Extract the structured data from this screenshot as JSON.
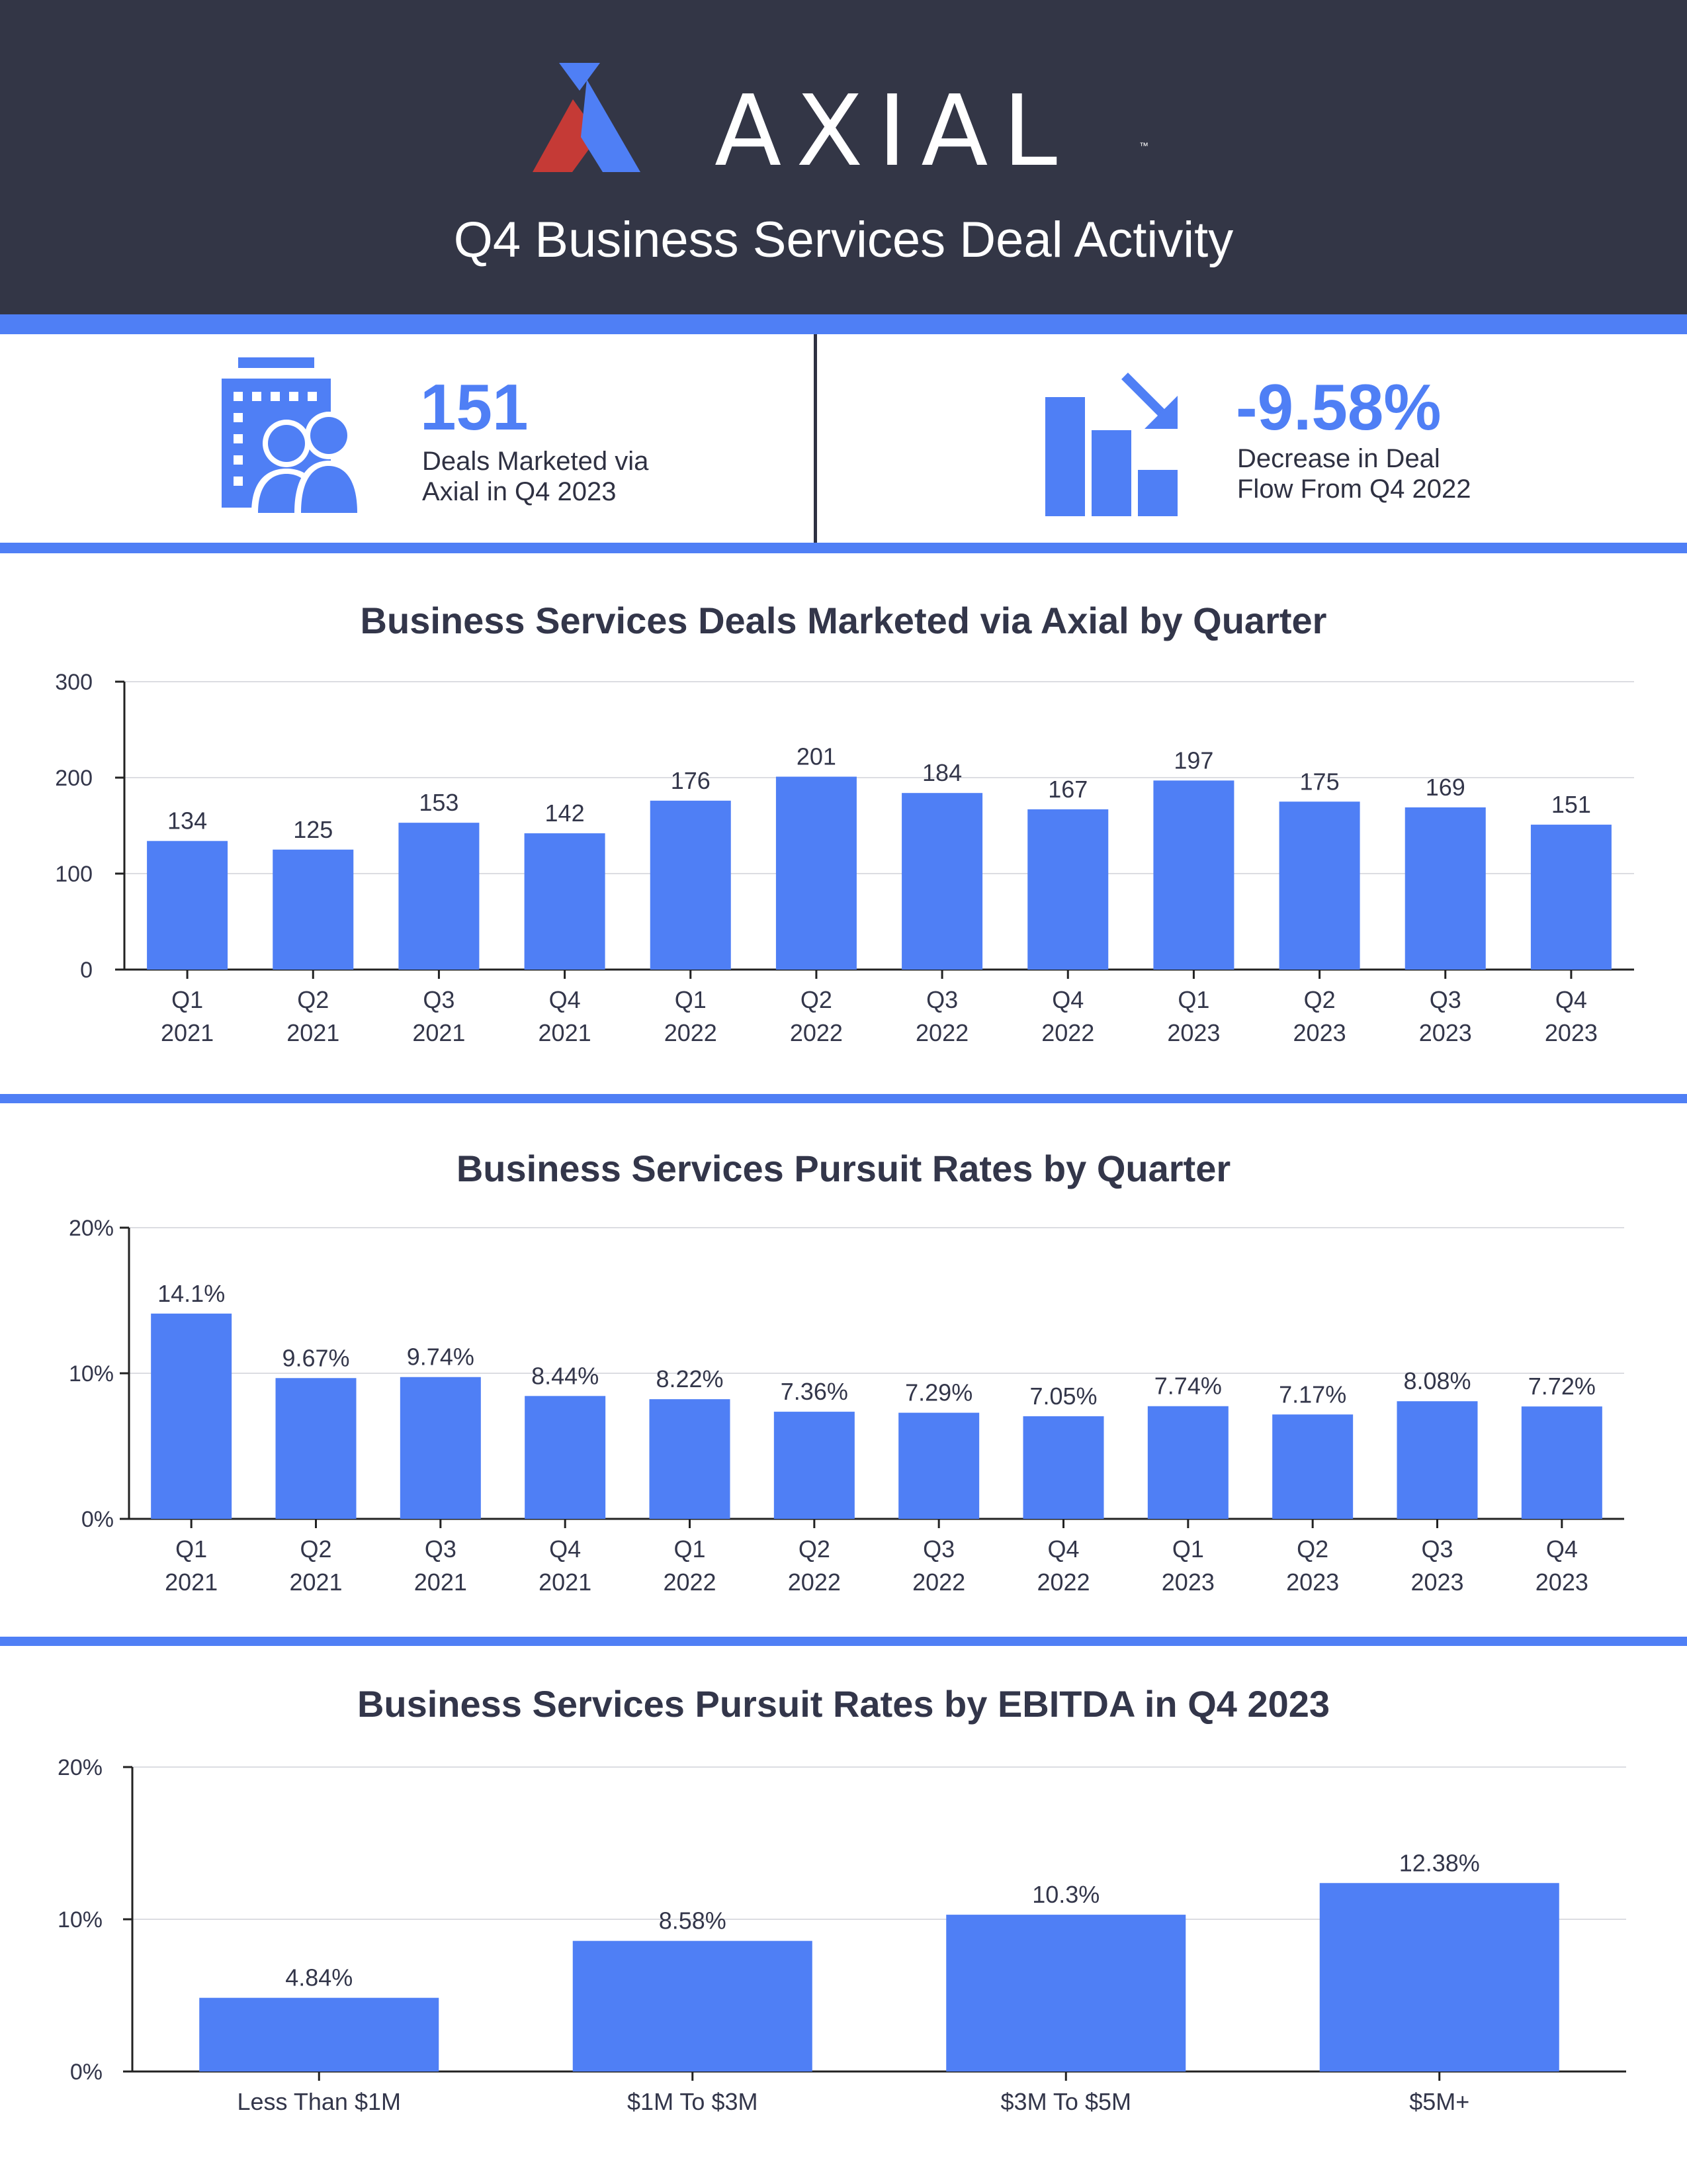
{
  "header": {
    "brand": "AXIAL",
    "trademark": "™",
    "title": "Q4 Business Services Deal Activity",
    "colors": {
      "background": "#333646",
      "logo_red": "#c53a36",
      "logo_blue": "#4f7ff5",
      "text": "#ffffff"
    }
  },
  "stats": [
    {
      "icon": "building-people-icon",
      "value": "151",
      "caption_line1": "Deals Marketed via",
      "caption_line2": "Axial in Q4 2023"
    },
    {
      "icon": "declining-bars-arrow-icon",
      "value": "-9.58%",
      "caption_line1": "Decrease in Deal",
      "caption_line2": "Flow From Q4 2022"
    }
  ],
  "accent_color": "#4f7ff5",
  "chart_data": [
    {
      "type": "bar",
      "title": "Business Services Deals Marketed via Axial by Quarter",
      "categories": [
        [
          "Q1",
          "2021"
        ],
        [
          "Q2",
          "2021"
        ],
        [
          "Q3",
          "2021"
        ],
        [
          "Q4",
          "2021"
        ],
        [
          "Q1",
          "2022"
        ],
        [
          "Q2",
          "2022"
        ],
        [
          "Q3",
          "2022"
        ],
        [
          "Q4",
          "2022"
        ],
        [
          "Q1",
          "2023"
        ],
        [
          "Q2",
          "2023"
        ],
        [
          "Q3",
          "2023"
        ],
        [
          "Q4",
          "2023"
        ]
      ],
      "values": [
        134,
        125,
        153,
        142,
        176,
        201,
        184,
        167,
        197,
        175,
        169,
        151
      ],
      "data_labels": [
        "134",
        "125",
        "153",
        "142",
        "176",
        "201",
        "184",
        "167",
        "197",
        "175",
        "169",
        "151"
      ],
      "ylim": [
        0,
        300
      ],
      "yticks": [
        0,
        100,
        200,
        300
      ],
      "ytick_labels": [
        "0",
        "100",
        "200",
        "300"
      ],
      "grid": true,
      "bar_color": "#4f7ff5"
    },
    {
      "type": "bar",
      "title": "Business Services Pursuit Rates by Quarter",
      "categories": [
        [
          "Q1",
          "2021"
        ],
        [
          "Q2",
          "2021"
        ],
        [
          "Q3",
          "2021"
        ],
        [
          "Q4",
          "2021"
        ],
        [
          "Q1",
          "2022"
        ],
        [
          "Q2",
          "2022"
        ],
        [
          "Q3",
          "2022"
        ],
        [
          "Q4",
          "2022"
        ],
        [
          "Q1",
          "2023"
        ],
        [
          "Q2",
          "2023"
        ],
        [
          "Q3",
          "2023"
        ],
        [
          "Q4",
          "2023"
        ]
      ],
      "values": [
        14.1,
        9.67,
        9.74,
        8.44,
        8.22,
        7.36,
        7.29,
        7.05,
        7.74,
        7.17,
        8.08,
        7.72
      ],
      "data_labels": [
        "14.1%",
        "9.67%",
        "9.74%",
        "8.44%",
        "8.22%",
        "7.36%",
        "7.29%",
        "7.05%",
        "7.74%",
        "7.17%",
        "8.08%",
        "7.72%"
      ],
      "ylim": [
        0,
        20
      ],
      "yticks": [
        0,
        10,
        20
      ],
      "ytick_labels": [
        "0%",
        "10%",
        "20%"
      ],
      "grid": true,
      "bar_color": "#4f7ff5"
    },
    {
      "type": "bar",
      "title": "Business Services Pursuit Rates by EBITDA in Q4 2023",
      "categories": [
        [
          "Less Than $1M"
        ],
        [
          "$1M To $3M"
        ],
        [
          "$3M To $5M"
        ],
        [
          "$5M+"
        ]
      ],
      "values": [
        4.84,
        8.58,
        10.3,
        12.38
      ],
      "data_labels": [
        "4.84%",
        "8.58%",
        "10.3%",
        "12.38%"
      ],
      "ylim": [
        0,
        20
      ],
      "yticks": [
        0,
        10,
        20
      ],
      "ytick_labels": [
        "0%",
        "10%",
        "20%"
      ],
      "grid": true,
      "bar_color": "#4f7ff5"
    }
  ]
}
